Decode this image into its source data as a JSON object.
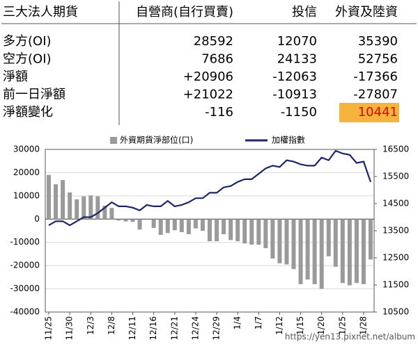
{
  "table": {
    "header": [
      "三大法人期貨",
      "自營商(自行買賣)",
      "投信",
      "外資及陸資"
    ],
    "rows": [
      [
        "多方(OI)",
        "28592",
        "12070",
        "35390"
      ],
      [
        "空方(OI)",
        "7686",
        "24133",
        "52756"
      ],
      [
        "淨額",
        "+20906",
        "-12063",
        "-17366"
      ],
      [
        "前一日淨額",
        "+21022",
        "-10913",
        "-27807"
      ],
      [
        "淨額變化",
        "-116",
        "-1150",
        "10441"
      ]
    ]
  },
  "chart_data": {
    "type": "bar_line",
    "categories": [
      "11/25",
      null,
      null,
      "11/30",
      null,
      null,
      "12/3",
      null,
      null,
      "12/8",
      null,
      null,
      "12/11",
      null,
      null,
      "12/16",
      null,
      null,
      "12/21",
      null,
      null,
      "12/24",
      null,
      null,
      "12/29",
      null,
      null,
      "1/4",
      null,
      null,
      "1/7",
      null,
      null,
      "1/12",
      null,
      null,
      "1/15",
      null,
      null,
      "1/20",
      null,
      null,
      "1/25",
      null,
      null,
      "1/28",
      null
    ],
    "series": [
      {
        "name": "外資期貨淨部位(口)",
        "color": "#9a9a9a",
        "values": [
          19000,
          15000,
          16800,
          11500,
          8500,
          9800,
          10200,
          9800,
          5800,
          4800,
          -600,
          -1000,
          -1200,
          -4500,
          -300,
          -3800,
          -6800,
          -6000,
          -4800,
          -5600,
          -6500,
          -4000,
          -5000,
          -9500,
          -9500,
          -6500,
          -9000,
          -9500,
          -10500,
          -11000,
          -11000,
          -12500,
          -17000,
          -19000,
          -19500,
          -21500,
          -28000,
          -26000,
          -28000,
          -30000,
          -16000,
          -20500,
          -27500,
          -28500,
          -27500,
          -28000,
          -17366
        ]
      },
      {
        "name": "加權指數",
        "color": "#1c2566",
        "axis": "y2",
        "values": [
          13700,
          13850,
          13850,
          13700,
          13850,
          14000,
          14000,
          14150,
          14350,
          14550,
          14400,
          14400,
          14350,
          14250,
          14450,
          14400,
          14400,
          14600,
          14400,
          14450,
          14550,
          14700,
          14700,
          14900,
          14900,
          15100,
          15150,
          15300,
          15400,
          15400,
          15600,
          15800,
          15900,
          15850,
          16100,
          16050,
          15950,
          15900,
          15900,
          16200,
          16100,
          16450,
          16350,
          16300,
          16000,
          16050,
          15300
        ]
      }
    ],
    "ylim": [
      -40000,
      30000
    ],
    "yticks": [
      -40000,
      -30000,
      -20000,
      -10000,
      0,
      10000,
      20000,
      30000
    ],
    "y2lim": [
      10500,
      16500
    ],
    "y2ticks": [
      10500,
      11500,
      12500,
      13500,
      14500,
      15500,
      16500
    ],
    "grid": true,
    "watermark": "https://yen13.pixnet.net/album"
  }
}
